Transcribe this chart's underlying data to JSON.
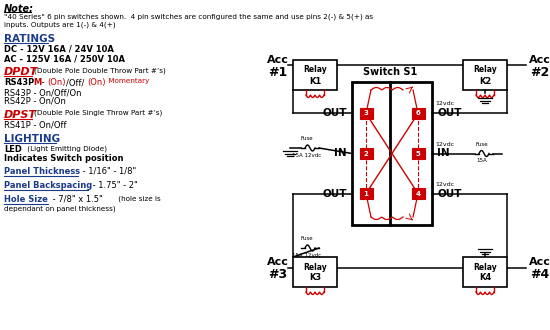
{
  "bg_color": "#ffffff",
  "text_color": "#000000",
  "red_color": "#cc0000",
  "blue_color": "#1a3a8a",
  "note_title": "Note:",
  "note_text1": "\"40 Series\" 6 pin switches shown.  4 pin switches are configured the same and use pins 2(-) & 5(+) as",
  "note_text2": "inputs. Outputs are 1(-) & 4(+)",
  "ratings_title": "RATINGS",
  "rating1": "DC - 12V 16A / 24V 10A",
  "rating2": "AC - 125V 16A / 250V 10A",
  "dpdt_label": "DPDT",
  "dpdt_sub": "(Double Pole Double Throw Part #’s)",
  "rs43p": "RS43P - On/Off/On",
  "rs42p": "RS42P - On/On",
  "dpst_label": "DPST",
  "dpst_sub": "(Double Pole Single Throw Part #’s)",
  "rs41p": "RS41P - On/Off",
  "lighting_title": "LIGHTING",
  "led_sub": "(Light Emitting Diode)",
  "indicates": "Indicates Switch position",
  "panel_thick_black": " - 1/16\" - 1/8\"",
  "panel_back_black": " - 1.75\" - 2\"",
  "hole_size_black": " - 7/8\" x 1.5\"",
  "hole_size_small2": "dependant on panel thickness)"
}
